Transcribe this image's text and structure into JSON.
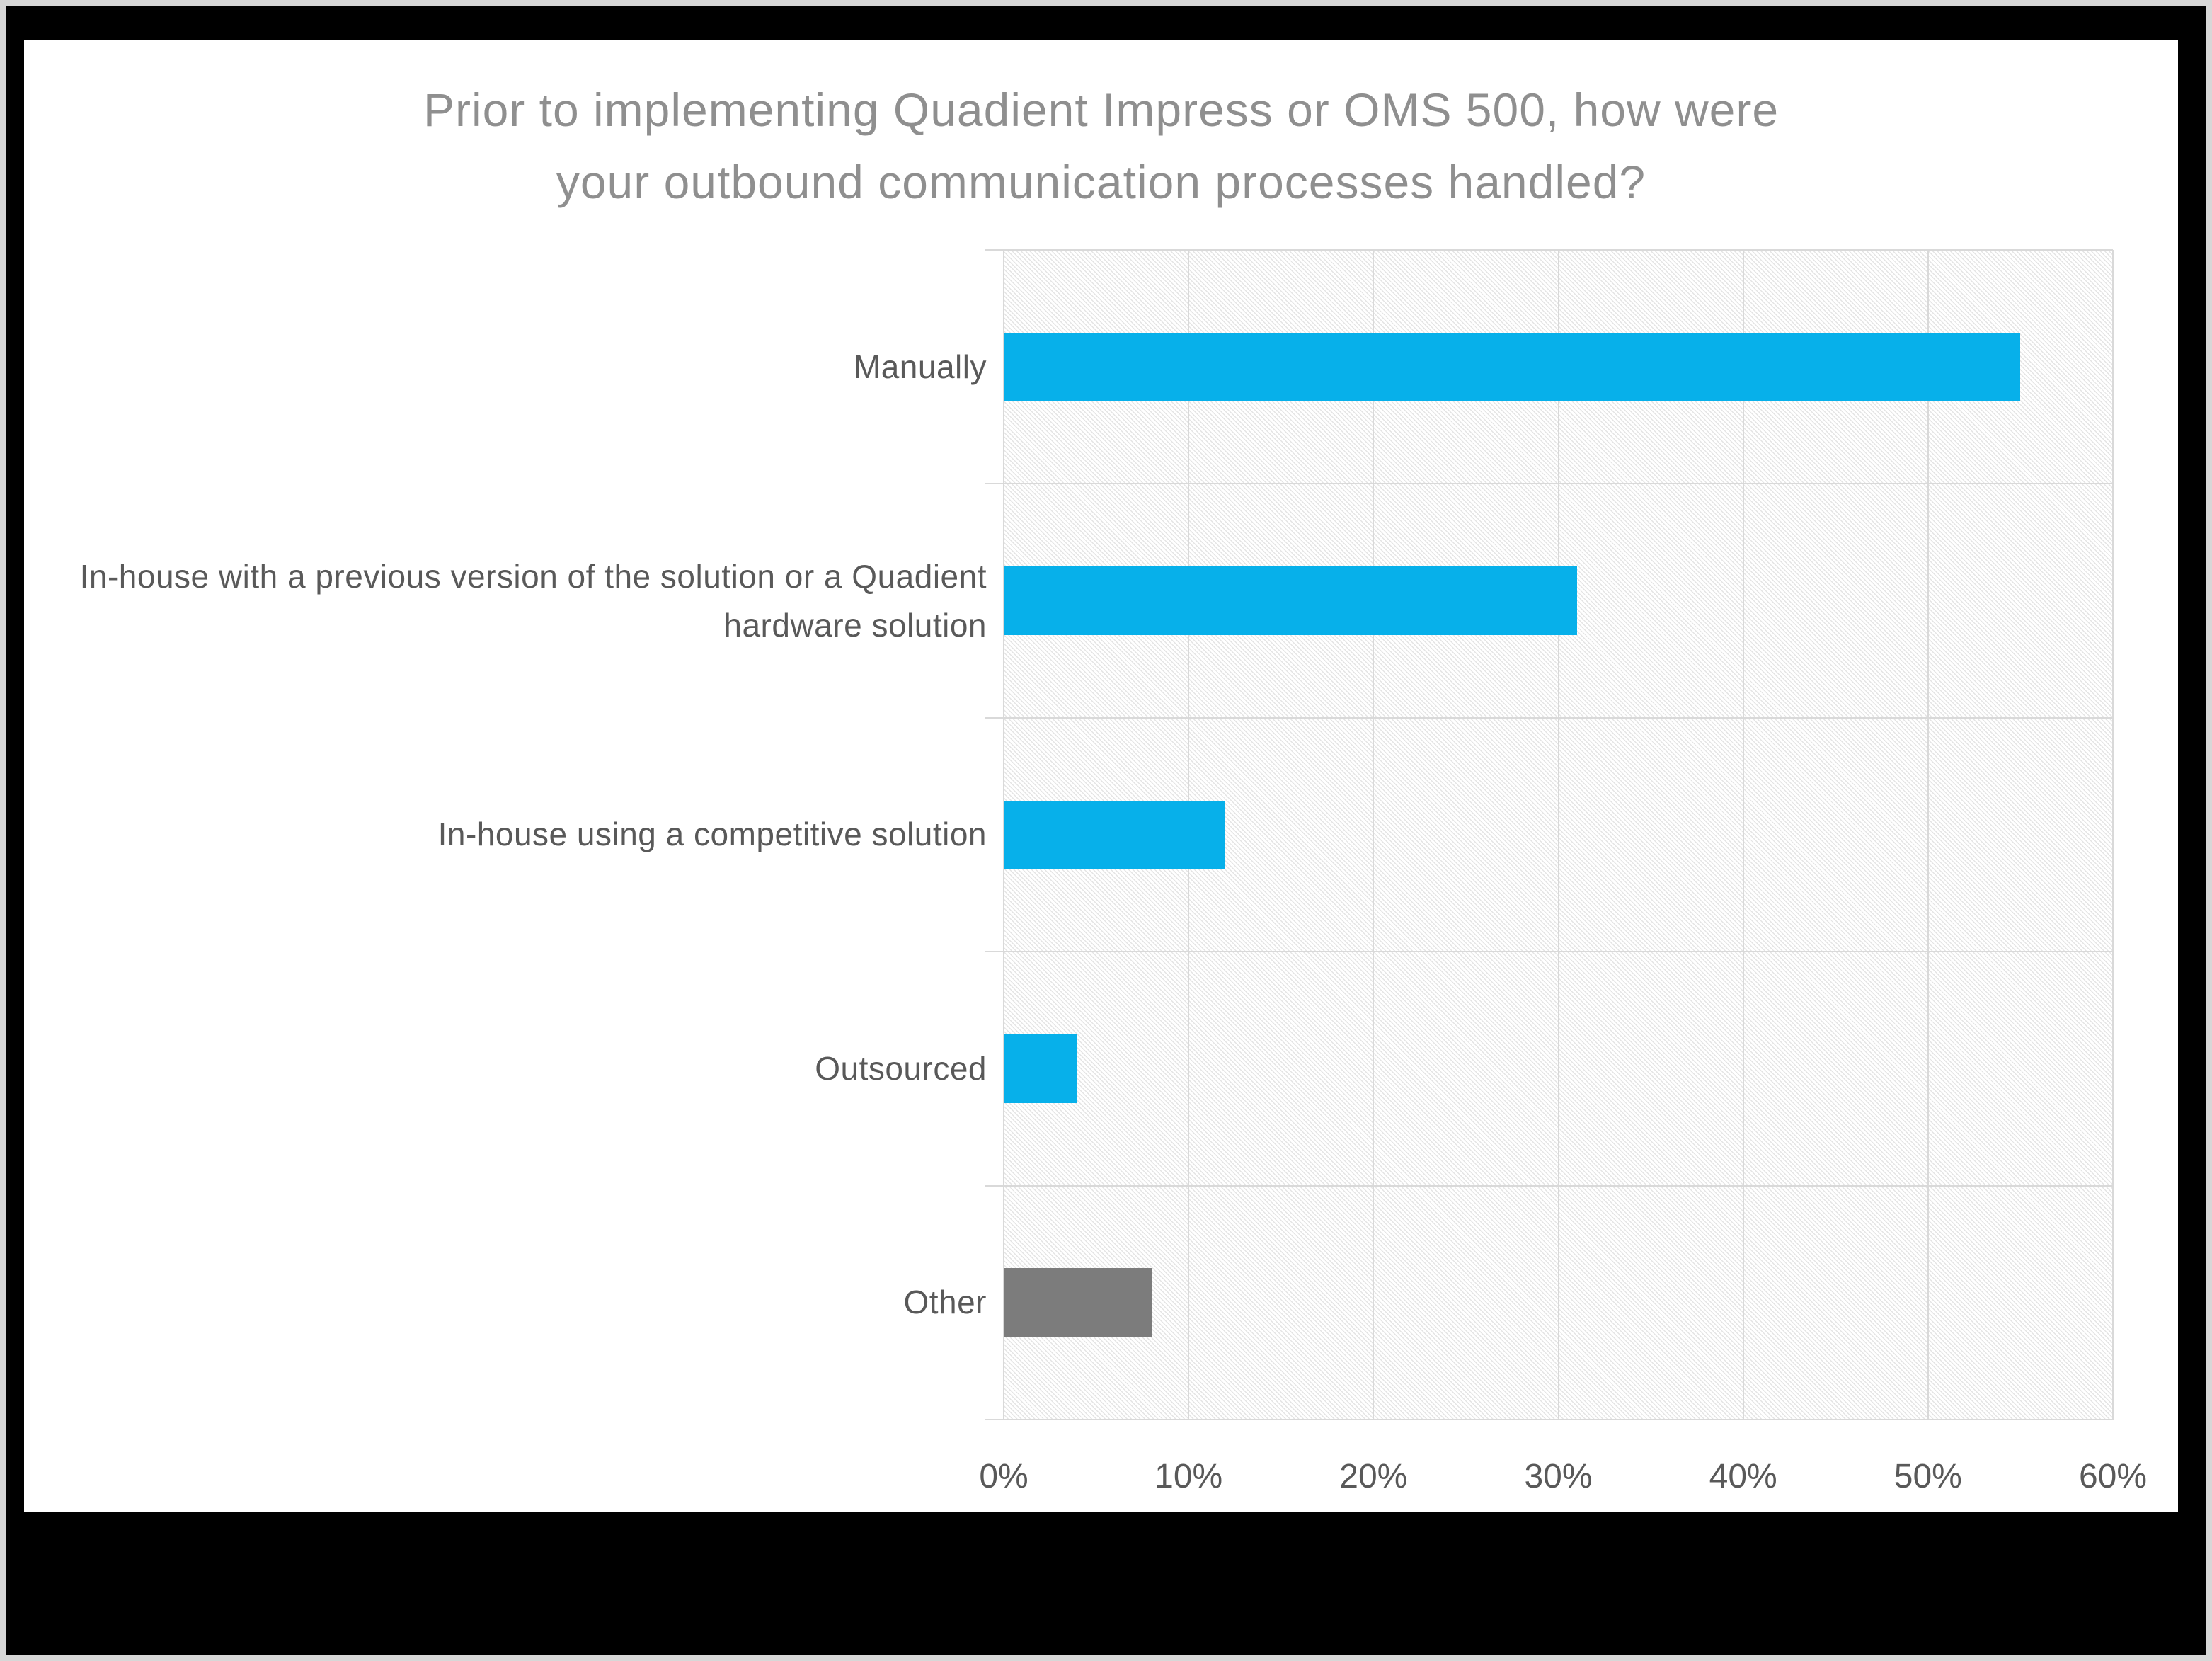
{
  "page": {
    "outer_border_color": "#d7d7d7",
    "frame_color": "#000000",
    "slide_background": "#ffffff"
  },
  "chart_data": {
    "type": "bar",
    "orientation": "horizontal",
    "title": "Prior to implementing Quadient Impress or OMS 500, how were your outbound communication processes handled?",
    "categories": [
      "Manually",
      "In-house with a previous version of the solution or a Quadient hardware solution",
      "In-house using a competitive solution",
      "Outsourced",
      "Other"
    ],
    "values": [
      55,
      31,
      12,
      4,
      8
    ],
    "value_unit": "%",
    "xlim": [
      0,
      60
    ],
    "x_tick_values": [
      0,
      10,
      20,
      30,
      40,
      50,
      60
    ],
    "x_tick_labels": [
      "0%",
      "10%",
      "20%",
      "30%",
      "40%",
      "50%",
      "60%"
    ],
    "grid": true,
    "legend": "none",
    "plot_pattern": "diagonal-hatch",
    "bar_colors": [
      "#07b0ea",
      "#07b0ea",
      "#07b0ea",
      "#07b0ea",
      "#7c7c7c"
    ],
    "colors": {
      "accent_blue": "#07b0ea",
      "other_gray": "#7c7c7c",
      "title_text": "#8f8f8f",
      "axis_text": "#595959",
      "gridline": "#d9d9d9",
      "hatch_line": "#e4e4e4"
    }
  }
}
